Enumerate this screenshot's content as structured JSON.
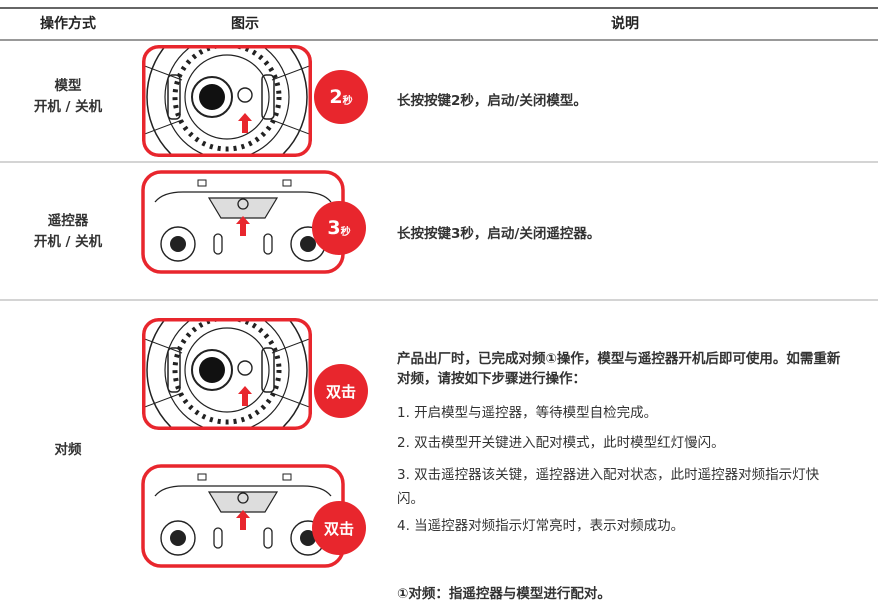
{
  "header": [
    "操作方式",
    "图示",
    "说明"
  ],
  "rows": [
    {
      "mode": [
        "模型",
        "开机 / 关机"
      ],
      "badge": [
        "2",
        "秒"
      ],
      "description": "长按按键2秒，启动/关闭模型。"
    },
    {
      "mode": [
        "遥控器",
        "开机 / 关机"
      ],
      "badge": [
        "3",
        "秒"
      ],
      "description": "长按按键3秒，启动/关闭遥控器。"
    },
    {
      "mode": [
        "对频"
      ],
      "badges": [
        "双击",
        "双击"
      ],
      "intro": "产品出厂时，已完成对频①操作，模型与遥控器开机后即可使用。如需重新对频，请按如下步骤进行操作：",
      "steps": [
        "1. 开启模型与遥控器，等待模型自检完成。",
        "2. 双击模型开关键进入配对模式，此时模型红灯慢闪。",
        "3. 双击遥控器该关键，遥控器进入配对状态，此时遥控器对频指示灯快闪。",
        "4. 当遥控器对频指示灯常亮时，表示对频成功。"
      ],
      "footnote": "①对频：指遥控器与模型进行配对。"
    }
  ]
}
